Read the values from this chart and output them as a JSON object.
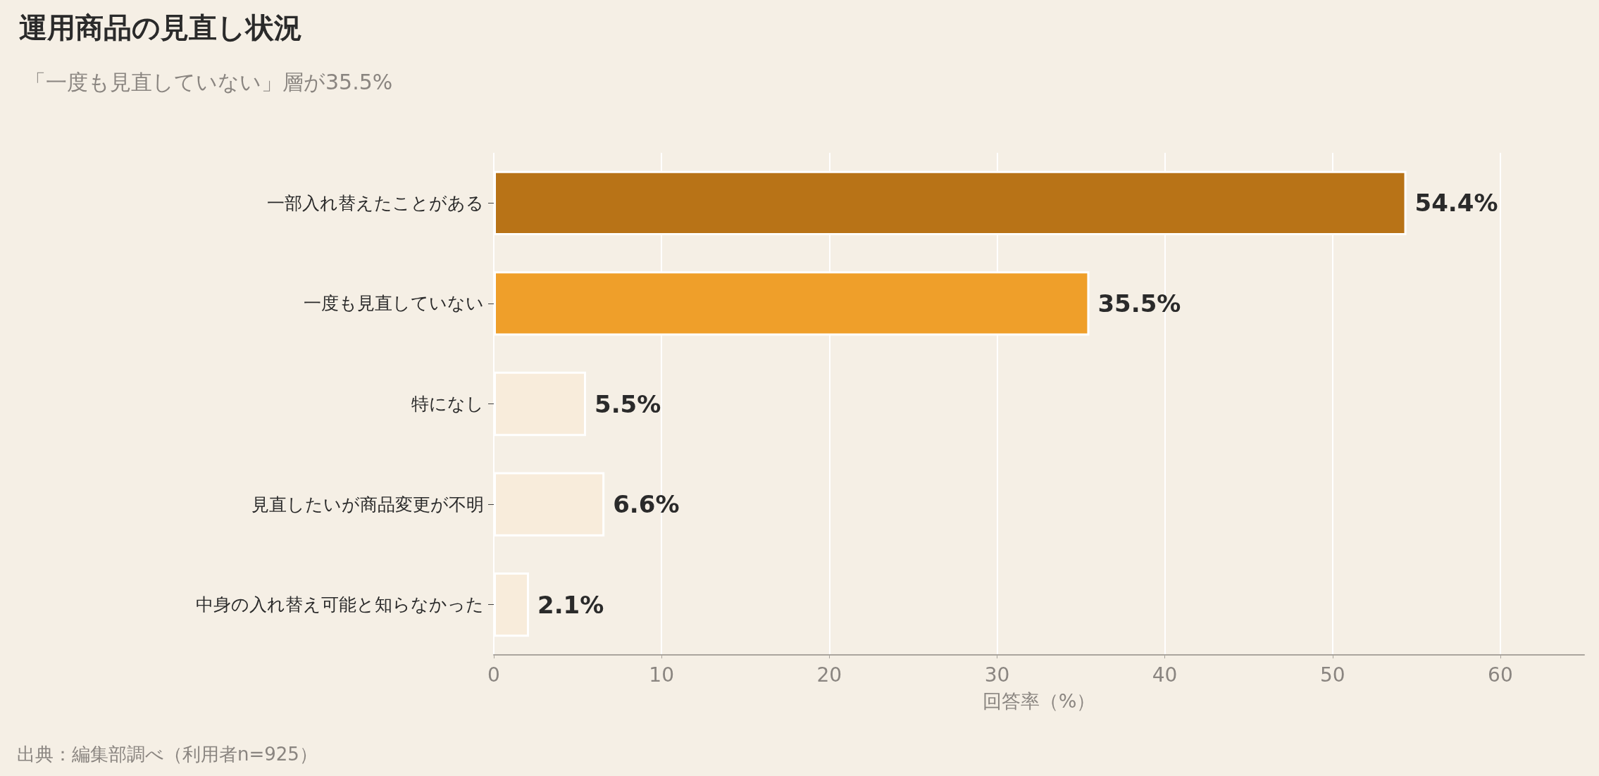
{
  "chart_data": {
    "type": "bar",
    "orientation": "horizontal",
    "title": "運用商品の見直し状況",
    "subtitle": "「一度も見直していない」層が35.5%",
    "xlabel": "回答率（%）",
    "annotations": [
      "出典：編集部調べ（利用者n=925）"
    ],
    "categories": [
      "一部入れ替えたことがある",
      "一度も見直していない",
      "特になし",
      "見直したいが商品変更が不明",
      "中身の入れ替え可能と知らなかった"
    ],
    "values": [
      54.4,
      35.5,
      5.5,
      6.6,
      2.1
    ],
    "value_labels": [
      "54.4%",
      "35.5%",
      "5.5%",
      "6.6%",
      "2.1%"
    ],
    "colors": [
      "#b87317",
      "#ef9f2a",
      "#f8ecdb",
      "#f8ecdb",
      "#f8ecdb"
    ],
    "xlim": [
      0,
      65
    ],
    "xticks": [
      0,
      10,
      20,
      30,
      40,
      50,
      60
    ],
    "grid": "x"
  }
}
